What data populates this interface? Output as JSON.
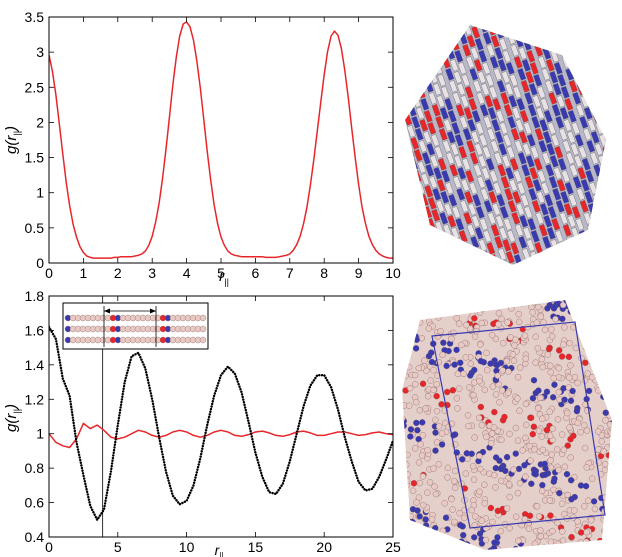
{
  "chart_data": [
    {
      "type": "line",
      "panel": "top",
      "xlabel": "r",
      "xlabel_sub": "||",
      "ylabel": "g(r",
      "ylabel_sub": "||",
      "ylabel_close": ")",
      "xlim": [
        0,
        10
      ],
      "ylim": [
        0,
        3.5
      ],
      "xticks": [
        0,
        1,
        2,
        3,
        4,
        5,
        6,
        7,
        8,
        9,
        10
      ],
      "yticks": [
        0,
        0.5,
        1,
        1.5,
        2,
        2.5,
        3,
        3.5
      ],
      "grid": false,
      "series": [
        {
          "color": "#e8262a",
          "style": "solid",
          "x": [
            0.0,
            0.1,
            0.2,
            0.3,
            0.4,
            0.5,
            0.6,
            0.7,
            0.8,
            0.9,
            1.0,
            1.1,
            1.2,
            1.3,
            1.4,
            1.5,
            1.6,
            1.7,
            1.8,
            1.9,
            2.0,
            2.1,
            2.2,
            2.3,
            2.4,
            2.5,
            2.6,
            2.7,
            2.8,
            2.9,
            3.0,
            3.1,
            3.2,
            3.3,
            3.4,
            3.5,
            3.6,
            3.7,
            3.8,
            3.9,
            4.0,
            4.1,
            4.2,
            4.3,
            4.4,
            4.5,
            4.6,
            4.7,
            4.8,
            4.9,
            5.0,
            5.1,
            5.2,
            5.3,
            5.4,
            5.5,
            5.6,
            5.7,
            5.8,
            5.9,
            6.0,
            6.1,
            6.2,
            6.3,
            6.4,
            6.5,
            6.6,
            6.7,
            6.8,
            6.9,
            7.0,
            7.1,
            7.2,
            7.3,
            7.4,
            7.5,
            7.6,
            7.7,
            7.8,
            7.9,
            8.0,
            8.1,
            8.2,
            8.3,
            8.4,
            8.5,
            8.6,
            8.7,
            8.8,
            8.9,
            9.0,
            9.1,
            9.2,
            9.3,
            9.4,
            9.5,
            9.6,
            9.7,
            9.8,
            9.9,
            10.0
          ],
          "y": [
            2.96,
            2.73,
            2.39,
            1.98,
            1.55,
            1.15,
            0.82,
            0.55,
            0.37,
            0.23,
            0.15,
            0.1,
            0.08,
            0.07,
            0.07,
            0.07,
            0.07,
            0.07,
            0.07,
            0.08,
            0.08,
            0.09,
            0.09,
            0.09,
            0.09,
            0.1,
            0.11,
            0.13,
            0.17,
            0.25,
            0.38,
            0.58,
            0.85,
            1.2,
            1.62,
            2.07,
            2.53,
            2.93,
            3.23,
            3.4,
            3.43,
            3.36,
            3.17,
            2.87,
            2.48,
            2.04,
            1.59,
            1.18,
            0.83,
            0.56,
            0.37,
            0.25,
            0.17,
            0.13,
            0.11,
            0.1,
            0.09,
            0.09,
            0.09,
            0.09,
            0.09,
            0.09,
            0.09,
            0.08,
            0.08,
            0.08,
            0.08,
            0.09,
            0.1,
            0.11,
            0.13,
            0.18,
            0.26,
            0.38,
            0.56,
            0.8,
            1.11,
            1.48,
            1.88,
            2.29,
            2.68,
            3.01,
            3.23,
            3.3,
            3.24,
            3.05,
            2.74,
            2.35,
            1.92,
            1.5,
            1.12,
            0.8,
            0.56,
            0.38,
            0.26,
            0.18,
            0.13,
            0.1,
            0.08,
            0.07,
            0.07
          ]
        }
      ]
    },
    {
      "type": "line",
      "panel": "bottom",
      "xlabel": "r",
      "xlabel_sub": "||",
      "ylabel": "g(r",
      "ylabel_sub": "||",
      "ylabel_close": ")",
      "xlim": [
        0,
        25
      ],
      "ylim": [
        0.4,
        1.8
      ],
      "xticks": [
        0,
        5,
        10,
        15,
        20,
        25
      ],
      "yticks": [
        0.4,
        0.6,
        0.8,
        1.0,
        1.2,
        1.4,
        1.6,
        1.8
      ],
      "ytick_labels": [
        "0.4",
        "0.6",
        "0.8",
        "1",
        "1.2",
        "1.4",
        "1.6",
        "1.8"
      ],
      "grid": false,
      "vline_x": 3.9,
      "series": [
        {
          "color": "#e8262a",
          "style": "solid",
          "x": [
            0.0,
            0.5,
            1.0,
            1.5,
            2.0,
            2.5,
            3.0,
            3.5,
            4.0,
            4.5,
            5.0,
            5.5,
            6.0,
            6.5,
            7.0,
            7.5,
            8.0,
            8.5,
            9.0,
            9.5,
            10.0,
            10.5,
            11.0,
            11.5,
            12.0,
            12.5,
            13.0,
            13.5,
            14.0,
            14.5,
            15.0,
            15.5,
            16.0,
            16.5,
            17.0,
            17.5,
            18.0,
            18.5,
            19.0,
            19.5,
            20.0,
            20.5,
            21.0,
            21.5,
            22.0,
            22.5,
            23.0,
            23.5,
            24.0,
            24.5,
            25.0
          ],
          "y": [
            1.0,
            0.95,
            0.93,
            0.92,
            0.97,
            1.06,
            1.03,
            1.05,
            1.02,
            0.98,
            0.97,
            0.98,
            1.0,
            1.02,
            1.01,
            0.99,
            0.98,
            0.99,
            1.01,
            1.02,
            1.01,
            0.99,
            0.98,
            0.99,
            1.01,
            1.02,
            1.01,
            0.99,
            0.985,
            0.995,
            1.01,
            1.015,
            1.005,
            0.99,
            0.985,
            0.995,
            1.01,
            1.015,
            1.005,
            0.99,
            0.99,
            1.0,
            1.01,
            1.01,
            1.0,
            0.99,
            0.995,
            1.005,
            1.01,
            1.0,
            0.995
          ]
        },
        {
          "color": "#000000",
          "style": "dotted",
          "x": [
            0.0,
            0.5,
            1.0,
            1.5,
            2.0,
            2.5,
            3.0,
            3.5,
            4.0,
            4.5,
            5.0,
            5.5,
            6.0,
            6.5,
            7.0,
            7.5,
            8.0,
            8.5,
            9.0,
            9.5,
            10.0,
            10.5,
            11.0,
            11.5,
            12.0,
            12.5,
            13.0,
            13.5,
            14.0,
            14.5,
            15.0,
            15.5,
            16.0,
            16.5,
            17.0,
            17.5,
            18.0,
            18.5,
            19.0,
            19.5,
            20.0,
            20.5,
            21.0,
            21.5,
            22.0,
            22.5,
            23.0,
            23.5,
            24.0,
            24.5,
            25.0
          ],
          "y": [
            1.62,
            1.55,
            1.32,
            1.22,
            0.95,
            0.76,
            0.58,
            0.5,
            0.56,
            0.78,
            1.05,
            1.3,
            1.45,
            1.47,
            1.38,
            1.2,
            0.98,
            0.78,
            0.64,
            0.59,
            0.61,
            0.7,
            0.86,
            1.05,
            1.22,
            1.34,
            1.39,
            1.35,
            1.24,
            1.07,
            0.89,
            0.75,
            0.66,
            0.65,
            0.71,
            0.84,
            1.0,
            1.16,
            1.28,
            1.34,
            1.34,
            1.27,
            1.14,
            0.98,
            0.84,
            0.72,
            0.67,
            0.68,
            0.75,
            0.85,
            0.96
          ]
        }
      ]
    }
  ],
  "images": {
    "top_right": "molecular-crystal-rendering",
    "bottom_right": "molecular-liquid-rendering"
  },
  "colors": {
    "red": "#e8262a",
    "blue": "#3a3ab0",
    "bead": "#e9c9c4"
  }
}
